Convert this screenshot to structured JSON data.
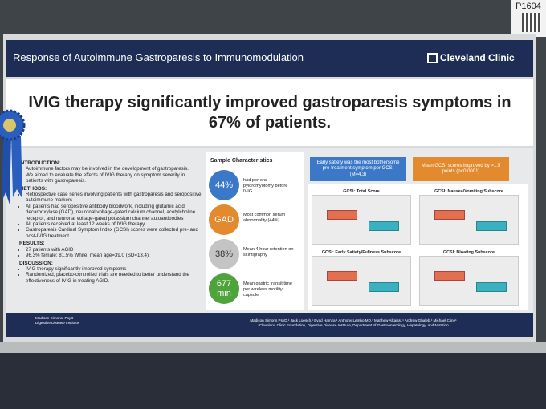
{
  "booth": "P1604",
  "header": {
    "title": "Response of Autoimmune Gastroparesis to Immunomodulation",
    "logo": "Cleveland Clinic"
  },
  "headline": "IVIG therapy significantly improved gastroparesis symptoms in 67% of patients.",
  "sections": [
    {
      "heading": "INTRODUCTION:",
      "items": [
        "Autoimmune factors may be involved in the development of gastroparesis.",
        "We aimed to evaluate the effects of IVIG therapy on symptom severity in patients with gastroparesis."
      ]
    },
    {
      "heading": "METHODS:",
      "items": [
        "Retrospective case series involving patients with gastroparesis and seropositive autoimmune markers",
        "All patients had seropositive antibody bloodwork, including glutamic acid decarboxylase (GAD), neuronal voltage-gated calcium channel, acetylcholine receptor, and neuronal voltage-gated potassium channel autoantibodies",
        "All patients received at least 12 weeks of IVIG therapy",
        "Gastroparesis Cardinal Symptom Index (GCSI) scores were collected pre- and post-IVIG treatment."
      ]
    },
    {
      "heading": "RESULTS:",
      "items": [
        "27 patients with AGID",
        "96.3% female; 81.5% White; mean age=39.0 (SD=13.4)."
      ]
    },
    {
      "heading": "DISCUSSION:",
      "items": [
        "IVIG therapy significantly improved symptoms",
        "Randomized, placebo-controlled trials are needed to better understand the effectiveness of IVIG in treating AGID."
      ]
    }
  ],
  "sample": {
    "title": "Sample Characteristics",
    "items": [
      {
        "stat": "44%",
        "text": "had per-oral pyloromyotomy before IVIG"
      },
      {
        "stat": "GAD",
        "text": "Most common serum abnormality (44%)"
      },
      {
        "stat": "38%",
        "text": "Mean 4 hour retention on scintigraphy"
      },
      {
        "stat": "677 min",
        "text": "Mean gastric transit time per wireless motility capsule"
      }
    ]
  },
  "callouts": [
    "Early satiety was the most bothersome pre-treatment symptom per GCSI (M=4.3)",
    "Mean GCSI scores improved by >1.5 points (p<0.0001)"
  ],
  "plots": [
    "GCSI: Total Score",
    "GCSI: Nausea/Vomiting Subscore",
    "GCSI: Early Satiety/Fullness Subscore",
    "GCSI: Bloating Subscore"
  ],
  "footer": {
    "contact": [
      "Madison Simons, PsyD",
      "Digestive Disease Institute"
    ],
    "authors": "Madison Simons PsyD,¹ Jack Loesch,¹ Eyad Hamza,¹ Anthony Lembo MD,¹ Matthew Alkaissi,¹ Andrew Ghaleb,¹ Michael Cline¹",
    "affiliation": "¹Cleveland Clinic Foundation, Digestive Disease Institute, Department of Gastroenterology, Hepatology, and Nutrition"
  }
}
